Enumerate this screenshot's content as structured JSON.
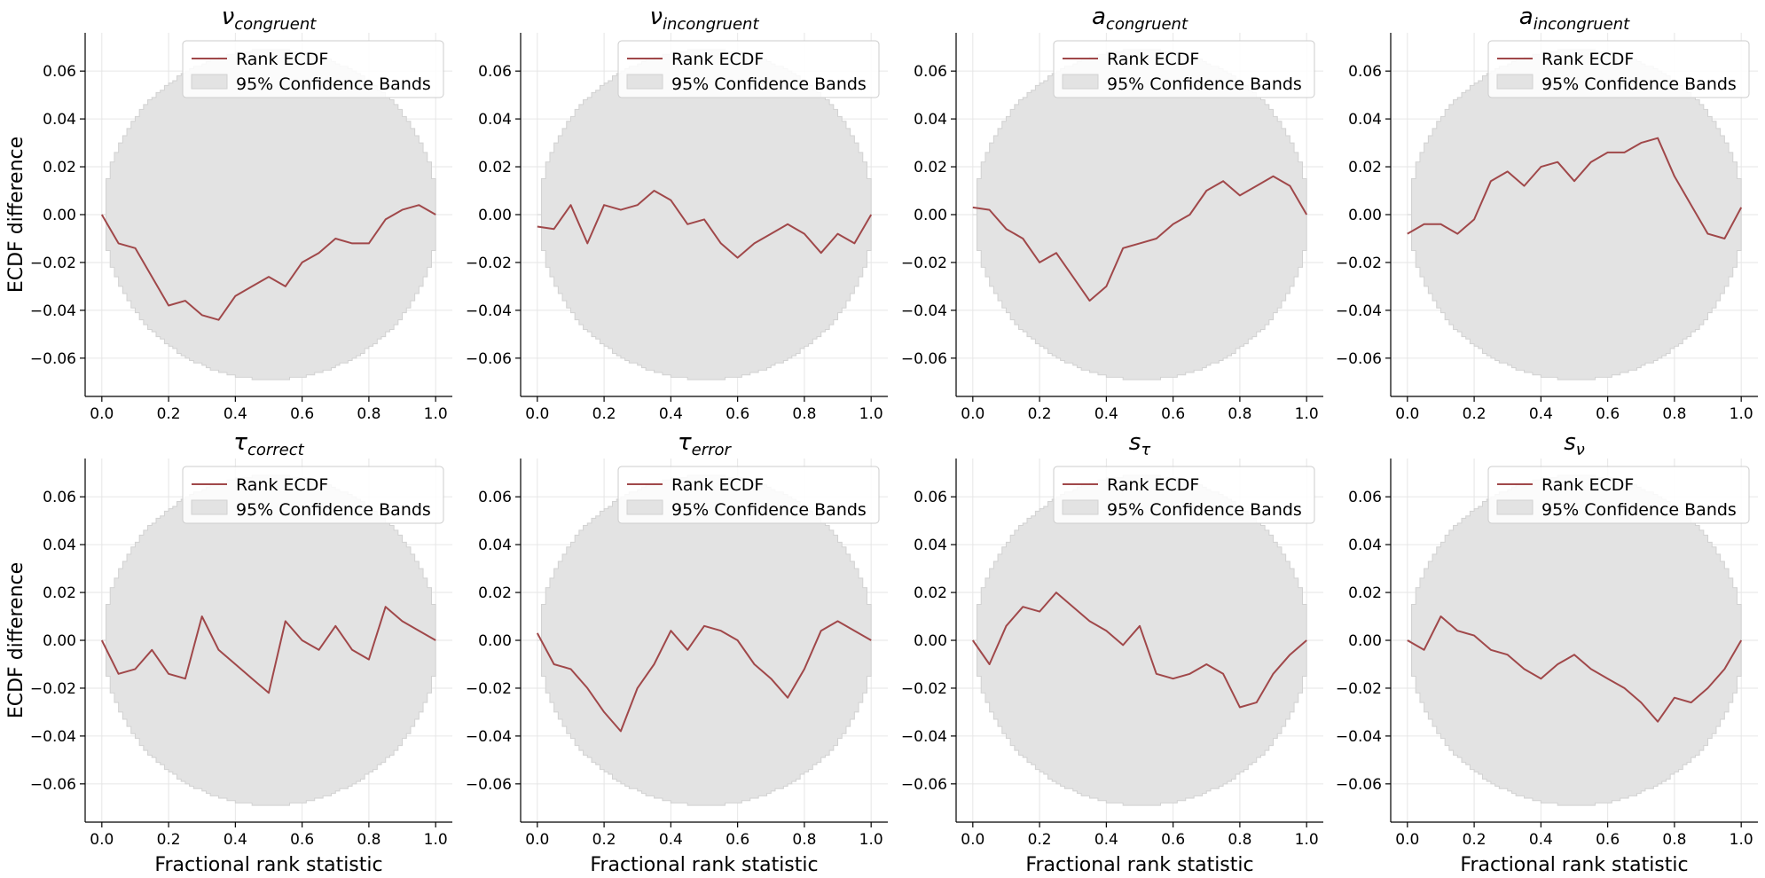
{
  "figure": {
    "background": "#ffffff",
    "rows": 2,
    "cols": 4,
    "shared_xlabel": "Fractional rank statistic",
    "shared_ylabel": "ECDF difference"
  },
  "colors": {
    "ecdf_line": "#a0484a",
    "band_fill": "#e3e3e3",
    "band_edge": "#d2d2d2",
    "grid": "#e6e6e6",
    "axis": "#000000"
  },
  "legend": {
    "line_label": "Rank ECDF",
    "band_label": "95% Confidence Bands",
    "placement": "upper right"
  },
  "chart_data": [
    {
      "type": "line",
      "title": "ν",
      "title_sub": "congruent",
      "xlabel": "",
      "ylabel": "ECDF difference",
      "xlim": [
        -0.05,
        1.05
      ],
      "ylim": [
        -0.076,
        0.076
      ],
      "xticks": [
        "0.0",
        "0.2",
        "0.4",
        "0.6",
        "0.8",
        "1.0"
      ],
      "yticks": [
        "−0.06",
        "−0.04",
        "−0.02",
        "0.00",
        "0.02",
        "0.04",
        "0.06"
      ],
      "band_halfwidth_max": 0.069,
      "grid": true,
      "series": [
        {
          "name": "Rank ECDF",
          "x": [
            0.0,
            0.05,
            0.1,
            0.15,
            0.2,
            0.25,
            0.3,
            0.35,
            0.4,
            0.45,
            0.5,
            0.55,
            0.6,
            0.65,
            0.7,
            0.75,
            0.8,
            0.85,
            0.9,
            0.95,
            1.0
          ],
          "y": [
            0.0,
            -0.012,
            -0.014,
            -0.026,
            -0.038,
            -0.036,
            -0.042,
            -0.044,
            -0.034,
            -0.03,
            -0.026,
            -0.03,
            -0.02,
            -0.016,
            -0.01,
            -0.012,
            -0.012,
            -0.002,
            0.002,
            0.004,
            0.0
          ]
        }
      ]
    },
    {
      "type": "line",
      "title": "ν",
      "title_sub": "incongruent",
      "xlabel": "",
      "ylabel": "",
      "xlim": [
        -0.05,
        1.05
      ],
      "ylim": [
        -0.076,
        0.076
      ],
      "xticks": [
        "0.0",
        "0.2",
        "0.4",
        "0.6",
        "0.8",
        "1.0"
      ],
      "yticks": [
        "−0.06",
        "−0.04",
        "−0.02",
        "0.00",
        "0.02",
        "0.04",
        "0.06"
      ],
      "band_halfwidth_max": 0.069,
      "grid": true,
      "series": [
        {
          "name": "Rank ECDF",
          "x": [
            0.0,
            0.05,
            0.1,
            0.15,
            0.2,
            0.25,
            0.3,
            0.35,
            0.4,
            0.45,
            0.5,
            0.55,
            0.6,
            0.65,
            0.7,
            0.75,
            0.8,
            0.85,
            0.9,
            0.95,
            1.0
          ],
          "y": [
            -0.005,
            -0.006,
            0.004,
            -0.012,
            0.004,
            0.002,
            0.004,
            0.01,
            0.006,
            -0.004,
            -0.002,
            -0.012,
            -0.018,
            -0.012,
            -0.008,
            -0.004,
            -0.008,
            -0.016,
            -0.008,
            -0.012,
            0.0
          ]
        }
      ]
    },
    {
      "type": "line",
      "title": "a",
      "title_sub": "congruent",
      "xlabel": "",
      "ylabel": "",
      "xlim": [
        -0.05,
        1.05
      ],
      "ylim": [
        -0.076,
        0.076
      ],
      "xticks": [
        "0.0",
        "0.2",
        "0.4",
        "0.6",
        "0.8",
        "1.0"
      ],
      "yticks": [
        "−0.06",
        "−0.04",
        "−0.02",
        "0.00",
        "0.02",
        "0.04",
        "0.06"
      ],
      "band_halfwidth_max": 0.069,
      "grid": true,
      "series": [
        {
          "name": "Rank ECDF",
          "x": [
            0.0,
            0.05,
            0.1,
            0.15,
            0.2,
            0.25,
            0.3,
            0.35,
            0.4,
            0.45,
            0.5,
            0.55,
            0.6,
            0.65,
            0.7,
            0.75,
            0.8,
            0.85,
            0.9,
            0.95,
            1.0
          ],
          "y": [
            0.003,
            0.002,
            -0.006,
            -0.01,
            -0.02,
            -0.016,
            -0.026,
            -0.036,
            -0.03,
            -0.014,
            -0.012,
            -0.01,
            -0.004,
            0.0,
            0.01,
            0.014,
            0.008,
            0.012,
            0.016,
            0.012,
            0.0
          ]
        }
      ]
    },
    {
      "type": "line",
      "title": "a",
      "title_sub": "incongruent",
      "xlabel": "",
      "ylabel": "",
      "xlim": [
        -0.05,
        1.05
      ],
      "ylim": [
        -0.076,
        0.076
      ],
      "xticks": [
        "0.0",
        "0.2",
        "0.4",
        "0.6",
        "0.8",
        "1.0"
      ],
      "yticks": [
        "−0.06",
        "−0.04",
        "−0.02",
        "0.00",
        "0.02",
        "0.04",
        "0.06"
      ],
      "band_halfwidth_max": 0.069,
      "grid": true,
      "series": [
        {
          "name": "Rank ECDF",
          "x": [
            0.0,
            0.05,
            0.1,
            0.15,
            0.2,
            0.25,
            0.3,
            0.35,
            0.4,
            0.45,
            0.5,
            0.55,
            0.6,
            0.65,
            0.7,
            0.75,
            0.8,
            0.85,
            0.9,
            0.95,
            1.0
          ],
          "y": [
            -0.008,
            -0.004,
            -0.004,
            -0.008,
            -0.002,
            0.014,
            0.018,
            0.012,
            0.02,
            0.022,
            0.014,
            0.022,
            0.026,
            0.026,
            0.03,
            0.032,
            0.016,
            0.004,
            -0.008,
            -0.01,
            0.003
          ]
        }
      ]
    },
    {
      "type": "line",
      "title": "τ",
      "title_sub": "correct",
      "xlabel": "Fractional rank statistic",
      "ylabel": "ECDF difference",
      "xlim": [
        -0.05,
        1.05
      ],
      "ylim": [
        -0.076,
        0.076
      ],
      "xticks": [
        "0.0",
        "0.2",
        "0.4",
        "0.6",
        "0.8",
        "1.0"
      ],
      "yticks": [
        "−0.06",
        "−0.04",
        "−0.02",
        "0.00",
        "0.02",
        "0.04",
        "0.06"
      ],
      "band_halfwidth_max": 0.069,
      "grid": true,
      "series": [
        {
          "name": "Rank ECDF",
          "x": [
            0.0,
            0.05,
            0.1,
            0.15,
            0.2,
            0.25,
            0.3,
            0.35,
            0.4,
            0.45,
            0.5,
            0.55,
            0.6,
            0.65,
            0.7,
            0.75,
            0.8,
            0.85,
            0.9,
            0.95,
            1.0
          ],
          "y": [
            0.0,
            -0.014,
            -0.012,
            -0.004,
            -0.014,
            -0.016,
            0.01,
            -0.004,
            -0.01,
            -0.016,
            -0.022,
            0.008,
            0.0,
            -0.004,
            0.006,
            -0.004,
            -0.008,
            0.014,
            0.008,
            0.004,
            0.0
          ]
        }
      ]
    },
    {
      "type": "line",
      "title": "τ",
      "title_sub": "error",
      "xlabel": "Fractional rank statistic",
      "ylabel": "",
      "xlim": [
        -0.05,
        1.05
      ],
      "ylim": [
        -0.076,
        0.076
      ],
      "xticks": [
        "0.0",
        "0.2",
        "0.4",
        "0.6",
        "0.8",
        "1.0"
      ],
      "yticks": [
        "−0.06",
        "−0.04",
        "−0.02",
        "0.00",
        "0.02",
        "0.04",
        "0.06"
      ],
      "band_halfwidth_max": 0.069,
      "grid": true,
      "series": [
        {
          "name": "Rank ECDF",
          "x": [
            0.0,
            0.05,
            0.1,
            0.15,
            0.2,
            0.25,
            0.3,
            0.35,
            0.4,
            0.45,
            0.5,
            0.55,
            0.6,
            0.65,
            0.7,
            0.75,
            0.8,
            0.85,
            0.9,
            0.95,
            1.0
          ],
          "y": [
            0.003,
            -0.01,
            -0.012,
            -0.02,
            -0.03,
            -0.038,
            -0.02,
            -0.01,
            0.004,
            -0.004,
            0.006,
            0.004,
            0.0,
            -0.01,
            -0.016,
            -0.024,
            -0.012,
            0.004,
            0.008,
            0.004,
            0.0
          ]
        }
      ]
    },
    {
      "type": "line",
      "title": "s",
      "title_sub": "τ",
      "xlabel": "Fractional rank statistic",
      "ylabel": "",
      "xlim": [
        -0.05,
        1.05
      ],
      "ylim": [
        -0.076,
        0.076
      ],
      "xticks": [
        "0.0",
        "0.2",
        "0.4",
        "0.6",
        "0.8",
        "1.0"
      ],
      "yticks": [
        "−0.06",
        "−0.04",
        "−0.02",
        "0.00",
        "0.02",
        "0.04",
        "0.06"
      ],
      "band_halfwidth_max": 0.069,
      "grid": true,
      "series": [
        {
          "name": "Rank ECDF",
          "x": [
            0.0,
            0.05,
            0.1,
            0.15,
            0.2,
            0.25,
            0.3,
            0.35,
            0.4,
            0.45,
            0.5,
            0.55,
            0.6,
            0.65,
            0.7,
            0.75,
            0.8,
            0.85,
            0.9,
            0.95,
            1.0
          ],
          "y": [
            0.0,
            -0.01,
            0.006,
            0.014,
            0.012,
            0.02,
            0.014,
            0.008,
            0.004,
            -0.002,
            0.006,
            -0.014,
            -0.016,
            -0.014,
            -0.01,
            -0.014,
            -0.028,
            -0.026,
            -0.014,
            -0.006,
            0.0
          ]
        }
      ]
    },
    {
      "type": "line",
      "title": "s",
      "title_sub": "ν",
      "xlabel": "Fractional rank statistic",
      "ylabel": "",
      "xlim": [
        -0.05,
        1.05
      ],
      "ylim": [
        -0.076,
        0.076
      ],
      "xticks": [
        "0.0",
        "0.2",
        "0.4",
        "0.6",
        "0.8",
        "1.0"
      ],
      "yticks": [
        "−0.06",
        "−0.04",
        "−0.02",
        "0.00",
        "0.02",
        "0.04",
        "0.06"
      ],
      "band_halfwidth_max": 0.069,
      "grid": true,
      "series": [
        {
          "name": "Rank ECDF",
          "x": [
            0.0,
            0.05,
            0.1,
            0.15,
            0.2,
            0.25,
            0.3,
            0.35,
            0.4,
            0.45,
            0.5,
            0.55,
            0.6,
            0.65,
            0.7,
            0.75,
            0.8,
            0.85,
            0.9,
            0.95,
            1.0
          ],
          "y": [
            0.0,
            -0.004,
            0.01,
            0.004,
            0.002,
            -0.004,
            -0.006,
            -0.012,
            -0.016,
            -0.01,
            -0.006,
            -0.012,
            -0.016,
            -0.02,
            -0.026,
            -0.034,
            -0.024,
            -0.026,
            -0.02,
            -0.012,
            0.0
          ]
        }
      ]
    }
  ]
}
